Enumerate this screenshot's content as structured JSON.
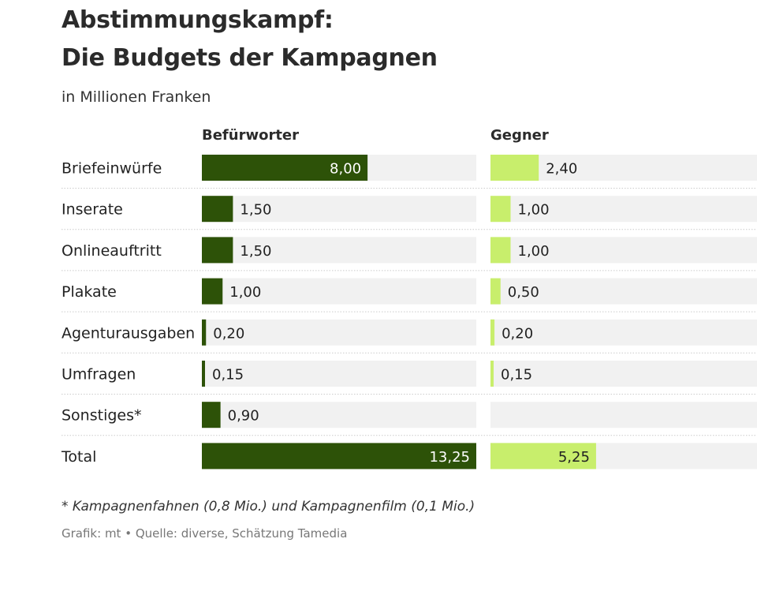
{
  "header": {
    "title_line1": "Abstimmungskampf:",
    "title_line2": "Die Budgets der Kampagnen",
    "subtitle": "in Millionen Franken"
  },
  "footer": {
    "footnote": "* Kampagnenfahnen (0,8 Mio.) und Kampagnenfilm (0,1 Mio.)",
    "source": "Grafik: mt • Quelle: diverse, Schätzung Tamedia"
  },
  "colors": {
    "befuerworter": "#2d5208",
    "gegner": "#c8ee6c",
    "track": "#f1f1f1",
    "separator": "#cccccc"
  },
  "chart_data": {
    "type": "bar",
    "title": "Abstimmungskampf: Die Budgets der Kampagnen",
    "unit": "in Millionen Franken",
    "categories": [
      "Briefeinwürfe",
      "Inserate",
      "Onlineauftritt",
      "Plakate",
      "Agenturausgaben",
      "Umfragen",
      "Sonstiges*",
      "Total"
    ],
    "series": [
      {
        "name": "Befürworter",
        "values": [
          8.0,
          1.5,
          1.5,
          1.0,
          0.2,
          0.15,
          0.9,
          13.25
        ],
        "labels": [
          "8,00",
          "1,50",
          "1,50",
          "1,00",
          "0,20",
          "0,15",
          "0,90",
          "13,25"
        ]
      },
      {
        "name": "Gegner",
        "values": [
          2.4,
          1.0,
          1.0,
          0.5,
          0.2,
          0.15,
          null,
          5.25
        ],
        "labels": [
          "2,40",
          "1,00",
          "1,00",
          "0,50",
          "0,20",
          "0,15",
          "",
          "5,25"
        ]
      }
    ],
    "xlim": [
      0,
      13.25
    ]
  }
}
